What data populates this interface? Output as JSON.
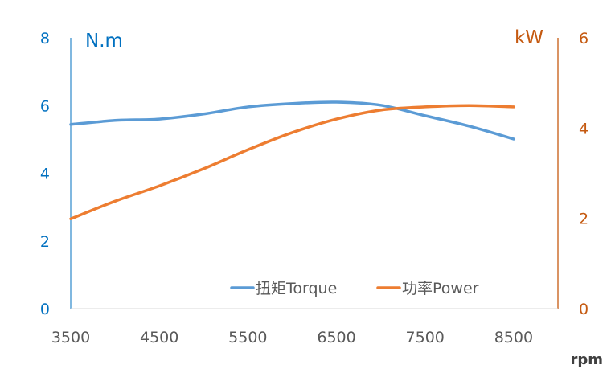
{
  "chart_data": {
    "type": "line",
    "x": [
      3500,
      4000,
      4500,
      5000,
      5500,
      6000,
      6500,
      7000,
      7500,
      8000,
      8500
    ],
    "xlabel": "rpm",
    "xlim": [
      3500,
      9000
    ],
    "xticks": [
      "3500",
      "4500",
      "5500",
      "6500",
      "7500",
      "8500"
    ],
    "y_left": {
      "label": "N.m",
      "lim": [
        0,
        8
      ],
      "ticks": [
        "0",
        "2",
        "4",
        "6",
        "8"
      ]
    },
    "y_right": {
      "label": "kW",
      "lim": [
        0,
        6
      ],
      "ticks": [
        "0",
        "2",
        "4",
        "6"
      ]
    },
    "series": [
      {
        "name": "扭矩Torque",
        "axis": "left",
        "color": "#5b9bd5",
        "values": [
          5.44,
          5.56,
          5.6,
          5.75,
          5.96,
          6.06,
          6.1,
          6.01,
          5.7,
          5.39,
          5.01
        ]
      },
      {
        "name": "功率Power",
        "axis": "right",
        "color": "#ed7d31",
        "values": [
          1.99,
          2.38,
          2.72,
          3.1,
          3.52,
          3.9,
          4.2,
          4.4,
          4.47,
          4.5,
          4.47
        ]
      }
    ],
    "legend": "bottom-center",
    "grid": false,
    "colors": {
      "left_axis": "#0070c0",
      "right_axis": "#c55a11",
      "tick_x": "#595959"
    }
  }
}
